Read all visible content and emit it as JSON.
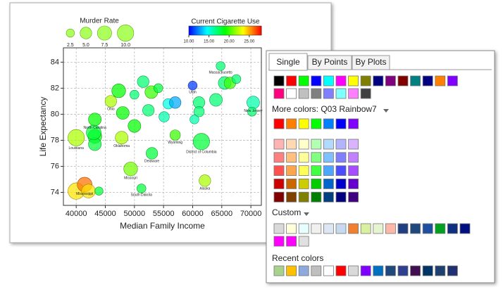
{
  "chart_data": {
    "type": "scatter",
    "x_label": "Median Family Income",
    "y_label": "Life Expectancy",
    "x": [
      40000,
      40000,
      41450,
      42100,
      43900,
      43200,
      43200,
      43200,
      43000,
      45950,
      47300,
      47800,
      48000,
      49350,
      50000,
      50000,
      51500,
      52900,
      52400,
      51200,
      53000,
      54100,
      55100,
      55800,
      57000,
      57000,
      60000,
      61500,
      61100,
      61100,
      60300,
      62100,
      64800,
      65500,
      66400,
      67500,
      70400,
      70200,
      64000
    ],
    "values": [
      78.2,
      74.1,
      74.6,
      74.1,
      74.1,
      79.6,
      78.3,
      77.7,
      78.6,
      81.0,
      81.8,
      78.2,
      80.1,
      75.8,
      79.1,
      81.5,
      82.5,
      81.7,
      80.3,
      74.3,
      77.0,
      82.0,
      79.8,
      80.8,
      80.9,
      78.4,
      82.2,
      77.9,
      80.9,
      80.2,
      79.6,
      74.9,
      83.7,
      82.4,
      82.4,
      82.7,
      80.9,
      80.2,
      81.1
    ],
    "sizes": [
      10,
      10,
      8,
      7,
      2.5,
      6,
      7,
      6,
      8,
      5,
      7,
      6,
      6,
      7,
      6,
      3,
      5,
      6,
      5,
      3,
      5,
      3,
      4,
      4,
      5,
      4,
      3,
      10,
      5,
      4,
      3,
      5,
      3,
      6,
      5,
      3,
      6,
      3,
      6
    ],
    "color_values": [
      22,
      24,
      26,
      24,
      18,
      19,
      19,
      18,
      18,
      22,
      19,
      22,
      19,
      21,
      19,
      17,
      17,
      20,
      17,
      18,
      18,
      18,
      16,
      15,
      13,
      20,
      11,
      18,
      17,
      17,
      16,
      22,
      17,
      17,
      20,
      17,
      16,
      17,
      17
    ],
    "labels": [
      "Louisiana",
      null,
      "Mississippi",
      null,
      null,
      "North Carolina",
      null,
      null,
      null,
      "Ohio",
      null,
      "Oklahoma",
      null,
      "Missouri",
      null,
      null,
      null,
      null,
      null,
      "South Dakota",
      "Delaware",
      null,
      null,
      null,
      null,
      "Wyoming",
      "Utah",
      "District of Columbia",
      null,
      null,
      null,
      "Alaska",
      "Massachusetts",
      null,
      null,
      null,
      "New Jersey",
      null,
      null
    ],
    "xlim": [
      37800,
      71800
    ],
    "ylim": [
      73,
      85.1
    ],
    "xticks": [
      40000,
      45000,
      50000,
      55000,
      60000,
      65000,
      70000
    ],
    "yticks": [
      74,
      76,
      78,
      80,
      82,
      84
    ],
    "grid": true,
    "size_legend": {
      "title": "Murder Rate",
      "values": [
        2.5,
        {
          "value": 5,
          "label": "5.0"
        },
        7.5,
        {
          "value": 10,
          "label": "10.0"
        }
      ]
    },
    "color_legend": {
      "title": "Current Cigarette Use",
      "lim": [
        10,
        28
      ],
      "ticks": [
        {
          "value": 10,
          "label": "10.00"
        },
        {
          "value": 15,
          "label": "15.00"
        },
        {
          "value": 20,
          "label": "20.00"
        },
        {
          "value": 25,
          "label": "25.00"
        }
      ]
    }
  },
  "color_picker": {
    "tabs": [
      "Single",
      "By Points",
      "By Plots"
    ],
    "standard": [
      "#000000",
      "#ff0000",
      "#00ff00",
      "#0000ff",
      "#00ffff",
      "#ff00ff",
      "#ffff00",
      "#808000",
      "#000080",
      "#800080",
      "#800000",
      "#008080",
      "#000080",
      "#ff8000",
      "#8000ff",
      "#ff0080",
      "#ffffff",
      "#c0c0c0",
      "#808080",
      "#8080ff",
      "#80ffff",
      "#ff80ff",
      "#404040"
    ],
    "more_colors_label": "More colors: Q03 Rainbow7",
    "rainbow": [
      "#ff0000",
      "#ff8000",
      "#ffff00",
      "#00ff00",
      "#0080ff",
      "#0000ff",
      "#8000ff"
    ],
    "shades": [
      [
        "#ffb3b3",
        "#ffd9b3",
        "#ffffcc",
        "#b3ffb3",
        "#b3d9ff",
        "#b3b3ff",
        "#d9b3ff"
      ],
      [
        "#ff8080",
        "#ffc080",
        "#ffff99",
        "#80ff80",
        "#80c0ff",
        "#8080ff",
        "#c080ff"
      ],
      [
        "#ff5050",
        "#ffa64d",
        "#ffff55",
        "#40ff40",
        "#4da6ff",
        "#4d4dff",
        "#a64dff"
      ],
      [
        "#cc0000",
        "#cc6600",
        "#cccc00",
        "#00cc00",
        "#0066cc",
        "#0000cc",
        "#6600cc"
      ],
      [
        "#800000",
        "#804000",
        "#808000",
        "#008000",
        "#004080",
        "#000080",
        "#400080"
      ]
    ],
    "custom_label": "Custom",
    "custom": [
      "#d9d9d9",
      "#ffffd9",
      "#e6ffff",
      "#f0f0f0",
      "#dde6f5",
      "#c6d9f1",
      "#f08030",
      "#d9f0a0",
      "#e6f5d0",
      "#ffb8a8",
      "#1f3f7f",
      "#1f497d",
      "#1f4fa0",
      "#00a020",
      "#10307f",
      "#001080",
      "#ff00ff",
      "#ff00ff",
      "#e0e0e0"
    ],
    "recent_label": "Recent colors",
    "recent": [
      "#a9d18e",
      "#ffc000",
      "#8ea9db",
      "#bfbfbf",
      "#ffffff",
      "#ff0000",
      "#d9d9d9",
      "#8000ff",
      "#0070c0",
      "#1f497d",
      "#2f3f8f",
      "#401050",
      "#003366",
      "#1f3f6f",
      "#203070"
    ]
  }
}
